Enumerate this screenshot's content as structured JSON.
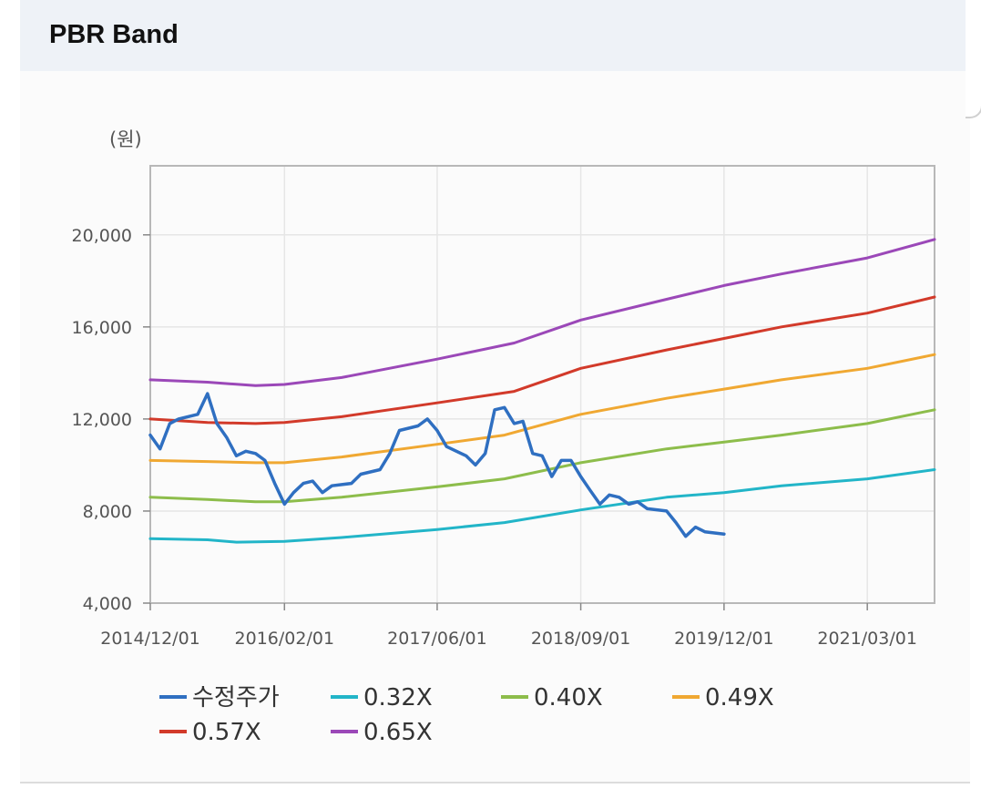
{
  "panel": {
    "title": "PBR Band"
  },
  "chart_data": {
    "type": "line",
    "unit_label": "(원)",
    "x_ticks": [
      "2014/12/01",
      "2016/02/01",
      "2017/06/01",
      "2018/09/01",
      "2019/12/01",
      "2021/03/01"
    ],
    "y_ticks": [
      "4,000",
      "8,000",
      "12,000",
      "16,000",
      "20,000"
    ],
    "ylim": [
      4000,
      23000
    ],
    "xlim": [
      "2014/12/01",
      "2021/10/01"
    ],
    "grid": true,
    "legend_position": "bottom",
    "series": [
      {
        "name": "0.32X",
        "color": "#22b5c8",
        "points": [
          [
            "2014/12/01",
            6800
          ],
          [
            "2015/06/01",
            6750
          ],
          [
            "2015/09/01",
            6650
          ],
          [
            "2016/02/01",
            6680
          ],
          [
            "2016/08/01",
            6850
          ],
          [
            "2017/06/01",
            7200
          ],
          [
            "2018/01/01",
            7500
          ],
          [
            "2018/09/01",
            8050
          ],
          [
            "2019/06/01",
            8600
          ],
          [
            "2019/12/01",
            8800
          ],
          [
            "2020/06/01",
            9100
          ],
          [
            "2021/03/01",
            9400
          ],
          [
            "2021/10/01",
            9800
          ]
        ]
      },
      {
        "name": "0.40X",
        "color": "#8dbd4b",
        "points": [
          [
            "2014/12/01",
            8600
          ],
          [
            "2015/06/01",
            8500
          ],
          [
            "2015/11/01",
            8400
          ],
          [
            "2016/02/01",
            8400
          ],
          [
            "2016/08/01",
            8600
          ],
          [
            "2017/06/01",
            9050
          ],
          [
            "2018/01/01",
            9400
          ],
          [
            "2018/09/01",
            10100
          ],
          [
            "2019/06/01",
            10700
          ],
          [
            "2019/12/01",
            11000
          ],
          [
            "2020/06/01",
            11300
          ],
          [
            "2021/03/01",
            11800
          ],
          [
            "2021/10/01",
            12400
          ]
        ]
      },
      {
        "name": "0.49X",
        "color": "#f0a832",
        "points": [
          [
            "2014/12/01",
            10200
          ],
          [
            "2015/06/01",
            10150
          ],
          [
            "2015/11/01",
            10100
          ],
          [
            "2016/02/01",
            10100
          ],
          [
            "2016/08/01",
            10350
          ],
          [
            "2017/06/01",
            10900
          ],
          [
            "2018/01/01",
            11300
          ],
          [
            "2018/09/01",
            12200
          ],
          [
            "2019/06/01",
            12900
          ],
          [
            "2019/12/01",
            13300
          ],
          [
            "2020/06/01",
            13700
          ],
          [
            "2021/03/01",
            14200
          ],
          [
            "2021/10/01",
            14800
          ]
        ]
      },
      {
        "name": "0.57X",
        "color": "#d23a2a",
        "points": [
          [
            "2014/12/01",
            12000
          ],
          [
            "2015/06/01",
            11850
          ],
          [
            "2015/11/01",
            11800
          ],
          [
            "2016/02/01",
            11850
          ],
          [
            "2016/08/01",
            12100
          ],
          [
            "2017/06/01",
            12700
          ],
          [
            "2018/02/01",
            13200
          ],
          [
            "2018/09/01",
            14200
          ],
          [
            "2019/06/01",
            15000
          ],
          [
            "2019/12/01",
            15500
          ],
          [
            "2020/06/01",
            16000
          ],
          [
            "2021/03/01",
            16600
          ],
          [
            "2021/10/01",
            17300
          ]
        ]
      },
      {
        "name": "0.65X",
        "color": "#9b48b8",
        "points": [
          [
            "2014/12/01",
            13700
          ],
          [
            "2015/06/01",
            13600
          ],
          [
            "2015/11/01",
            13450
          ],
          [
            "2016/02/01",
            13500
          ],
          [
            "2016/08/01",
            13800
          ],
          [
            "2017/06/01",
            14600
          ],
          [
            "2018/02/01",
            15300
          ],
          [
            "2018/09/01",
            16300
          ],
          [
            "2019/06/01",
            17200
          ],
          [
            "2019/12/01",
            17800
          ],
          [
            "2020/06/01",
            18300
          ],
          [
            "2021/03/01",
            19000
          ],
          [
            "2021/10/01",
            19800
          ]
        ]
      },
      {
        "name": "수정주가",
        "color": "#2f6fc1",
        "points": [
          [
            "2014/12/01",
            11300
          ],
          [
            "2015/01/01",
            10700
          ],
          [
            "2015/02/01",
            11800
          ],
          [
            "2015/03/01",
            12000
          ],
          [
            "2015/05/01",
            12200
          ],
          [
            "2015/06/01",
            13100
          ],
          [
            "2015/07/01",
            11800
          ],
          [
            "2015/08/01",
            11200
          ],
          [
            "2015/09/01",
            10400
          ],
          [
            "2015/10/01",
            10600
          ],
          [
            "2015/11/01",
            10500
          ],
          [
            "2015/12/01",
            10200
          ],
          [
            "2016/01/01",
            9200
          ],
          [
            "2016/02/01",
            8300
          ],
          [
            "2016/03/01",
            8800
          ],
          [
            "2016/04/01",
            9200
          ],
          [
            "2016/05/01",
            9300
          ],
          [
            "2016/06/01",
            8800
          ],
          [
            "2016/07/01",
            9100
          ],
          [
            "2016/09/01",
            9200
          ],
          [
            "2016/10/01",
            9600
          ],
          [
            "2016/12/01",
            9800
          ],
          [
            "2017/01/01",
            10500
          ],
          [
            "2017/02/01",
            11500
          ],
          [
            "2017/04/01",
            11700
          ],
          [
            "2017/05/01",
            12000
          ],
          [
            "2017/06/01",
            11500
          ],
          [
            "2017/07/01",
            10800
          ],
          [
            "2017/09/01",
            10400
          ],
          [
            "2017/10/01",
            10000
          ],
          [
            "2017/11/01",
            10500
          ],
          [
            "2017/12/01",
            12400
          ],
          [
            "2018/01/01",
            12500
          ],
          [
            "2018/02/01",
            11800
          ],
          [
            "2018/03/01",
            11900
          ],
          [
            "2018/04/01",
            10500
          ],
          [
            "2018/05/01",
            10400
          ],
          [
            "2018/06/01",
            9500
          ],
          [
            "2018/07/01",
            10200
          ],
          [
            "2018/08/01",
            10200
          ],
          [
            "2018/09/01",
            9500
          ],
          [
            "2018/10/01",
            8900
          ],
          [
            "2018/11/01",
            8300
          ],
          [
            "2018/12/01",
            8700
          ],
          [
            "2019/01/01",
            8600
          ],
          [
            "2019/02/01",
            8300
          ],
          [
            "2019/03/01",
            8400
          ],
          [
            "2019/04/01",
            8100
          ],
          [
            "2019/06/01",
            8000
          ],
          [
            "2019/07/01",
            7500
          ],
          [
            "2019/08/01",
            6900
          ],
          [
            "2019/09/01",
            7300
          ],
          [
            "2019/10/01",
            7100
          ],
          [
            "2019/12/01",
            7000
          ]
        ]
      }
    ],
    "legend": [
      {
        "name": "수정주가",
        "color": "#2f6fc1"
      },
      {
        "name": "0.32X",
        "color": "#22b5c8"
      },
      {
        "name": "0.40X",
        "color": "#8dbd4b"
      },
      {
        "name": "0.49X",
        "color": "#f0a832"
      },
      {
        "name": "0.57X",
        "color": "#d23a2a"
      },
      {
        "name": "0.65X",
        "color": "#9b48b8"
      }
    ]
  }
}
